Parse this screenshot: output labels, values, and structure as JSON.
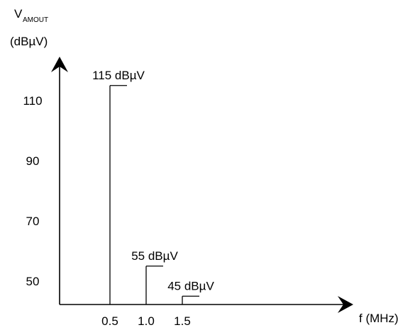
{
  "chart_data": {
    "type": "bar",
    "title": "",
    "ylabel": {
      "main": "V",
      "subscript": "AMOUT",
      "unit": "(dBµV)"
    },
    "xlabel": "f (MHz)",
    "xlim": [
      0,
      2.1
    ],
    "ylim": [
      40,
      120
    ],
    "grid": false,
    "legend": "none",
    "yticks": [
      {
        "value": 50,
        "label": "50"
      },
      {
        "value": 70,
        "label": "70"
      },
      {
        "value": 90,
        "label": "90"
      },
      {
        "value": 110,
        "label": "110"
      }
    ],
    "xticks": [
      {
        "value": 0.5,
        "label": "0.5"
      },
      {
        "value": 1.0,
        "label": "1.0"
      },
      {
        "value": 1.5,
        "label": "1.5"
      }
    ],
    "series": [
      {
        "x": [
          0.5,
          1.0,
          1.5
        ],
        "values": [
          115,
          55,
          45
        ],
        "labels": [
          "115 dBµV",
          "55 dBµV",
          "45 dBµV"
        ]
      }
    ]
  }
}
